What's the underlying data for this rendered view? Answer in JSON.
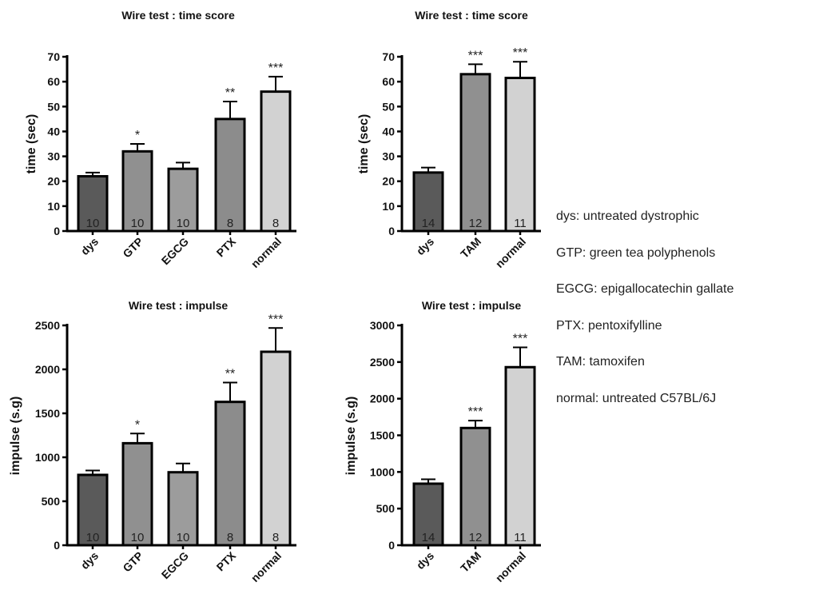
{
  "chart_data": [
    {
      "type": "bar",
      "title": "Wire test : time score",
      "ylabel": "time (sec)",
      "categories": [
        "dys",
        "GTP",
        "EGCG",
        "PTX",
        "normal"
      ],
      "values": [
        22,
        32,
        25,
        45,
        56
      ],
      "errors": [
        1.5,
        3,
        2.5,
        7,
        6
      ],
      "n_labels": [
        "10",
        "10",
        "10",
        "8",
        "8"
      ],
      "significance": [
        "",
        "*",
        "",
        "**",
        "***"
      ],
      "colors": [
        "#5a5a5a",
        "#909090",
        "#9c9c9c",
        "#8c8c8c",
        "#d2d2d2"
      ],
      "ylim": [
        0,
        70
      ],
      "yticks": [
        "0",
        "10",
        "20",
        "30",
        "40",
        "50",
        "60",
        "70"
      ]
    },
    {
      "type": "bar",
      "title": "Wire test : time score",
      "ylabel": "time (sec)",
      "categories": [
        "dys",
        "TAM",
        "normal"
      ],
      "values": [
        23.5,
        63,
        61.5
      ],
      "errors": [
        2,
        4,
        6.5
      ],
      "n_labels": [
        "14",
        "12",
        "11"
      ],
      "significance": [
        "",
        "***",
        "***"
      ],
      "colors": [
        "#5a5a5a",
        "#909090",
        "#d2d2d2"
      ],
      "ylim": [
        0,
        70
      ],
      "yticks": [
        "0",
        "10",
        "20",
        "30",
        "40",
        "50",
        "60",
        "70"
      ]
    },
    {
      "type": "bar",
      "title": "Wire test : impulse",
      "ylabel": "impulse (s.g)",
      "categories": [
        "dys",
        "GTP",
        "EGCG",
        "PTX",
        "normal"
      ],
      "values": [
        800,
        1160,
        830,
        1630,
        2200
      ],
      "errors": [
        50,
        110,
        100,
        220,
        270
      ],
      "n_labels": [
        "10",
        "10",
        "10",
        "8",
        "8"
      ],
      "significance": [
        "",
        "*",
        "",
        "**",
        "***"
      ],
      "colors": [
        "#5a5a5a",
        "#909090",
        "#9c9c9c",
        "#8c8c8c",
        "#d2d2d2"
      ],
      "ylim": [
        0,
        2500
      ],
      "yticks": [
        "0",
        "500",
        "1000",
        "1500",
        "2000",
        "2500"
      ]
    },
    {
      "type": "bar",
      "title": "Wire test : impulse",
      "ylabel": "impulse (s.g)",
      "categories": [
        "dys",
        "TAM",
        "normal"
      ],
      "values": [
        840,
        1600,
        2430
      ],
      "errors": [
        60,
        100,
        270
      ],
      "n_labels": [
        "14",
        "12",
        "11"
      ],
      "significance": [
        "",
        "***",
        "***"
      ],
      "colors": [
        "#5a5a5a",
        "#909090",
        "#d2d2d2"
      ],
      "ylim": [
        0,
        3000
      ],
      "yticks": [
        "0",
        "500",
        "1000",
        "1500",
        "2000",
        "2500",
        "3000"
      ]
    }
  ],
  "legend": [
    "dys: untreated dystrophic",
    "GTP: green tea polyphenols",
    "EGCG: epigallocatechin gallate",
    "PTX: pentoxifylline",
    "TAM: tamoxifen",
    "normal: untreated C57BL/6J"
  ]
}
